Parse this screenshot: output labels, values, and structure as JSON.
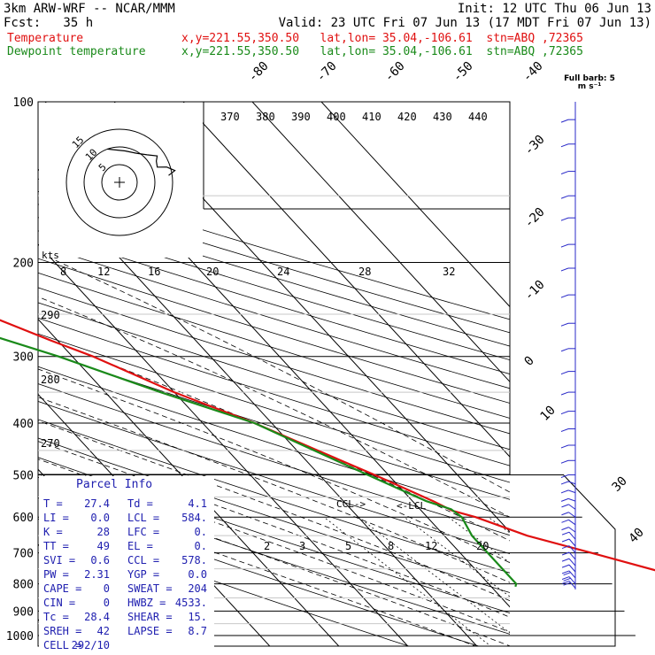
{
  "header": {
    "model": "3km ARW-WRF -- NCAR/MMM",
    "init": "Init: 12 UTC Thu 06 Jun 13",
    "fcst": "Fcst:   35 h",
    "valid": "Valid: 23 UTC Fri 07 Jun 13 (17 MDT Fri 07 Jun 13)",
    "temp_label": "Temperature",
    "temp_info": "x,y=221.55,350.50   lat,lon= 35.04,-106.61  stn=ABQ ,72365",
    "dew_label": "Dewpoint temperature",
    "dew_info": "x,y=221.55,350.50   lat,lon= 35.04,-106.61  stn=ABQ ,72365"
  },
  "colors": {
    "temperature": "#e01010",
    "dewpoint": "#1a8a1a",
    "wind": "#2828c8",
    "grid": "#000000",
    "ink": "#000000"
  },
  "wind_label": "Full barb: 5 m s⁻¹",
  "hodograph": {
    "units": "kts",
    "rings": [
      "5",
      "10",
      "15"
    ]
  },
  "parcel_info": {
    "title": "Parcel Info",
    "rows": [
      {
        "k1": "T",
        "v1": "27.4",
        "k2": "Td",
        "v2": "4.1"
      },
      {
        "k1": "LI",
        "v1": "0.0",
        "k2": "LCL",
        "v2": "584."
      },
      {
        "k1": "K",
        "v1": "28",
        "k2": "LFC",
        "v2": "0."
      },
      {
        "k1": "TT",
        "v1": "49",
        "k2": "EL",
        "v2": "0."
      },
      {
        "k1": "SVI",
        "v1": "0.6",
        "k2": "CCL",
        "v2": "578."
      },
      {
        "k1": "PW",
        "v1": "2.31",
        "k2": "YGP",
        "v2": "0.0"
      },
      {
        "k1": "CAPE",
        "v1": "0",
        "k2": "SWEAT",
        "v2": "204"
      },
      {
        "k1": "CIN",
        "v1": "0",
        "k2": "HWBZ",
        "v2": "4533."
      },
      {
        "k1": "Tc",
        "v1": "28.4",
        "k2": "SHEAR",
        "v2": "15."
      },
      {
        "k1": "SREH",
        "v1": "42",
        "k2": "LAPSE",
        "v2": "8.7"
      },
      {
        "k1": "CELL",
        "v1": "292/10",
        "k2": "",
        "v2": ""
      }
    ]
  },
  "annotations": {
    "ccl": "CCL->",
    "lcl": "<-LCL"
  },
  "chart_data": {
    "type": "line",
    "title": "",
    "chart_kind": "skew-T log-p",
    "y_scale": "log",
    "ylabel": "",
    "xlabel": "",
    "pressure_levels": [
      "100",
      "200",
      "300",
      "400",
      "500",
      "600",
      "700",
      "800",
      "900",
      "1000"
    ],
    "temperature_ticks": [
      "-80",
      "-70",
      "-60",
      "-50",
      "-40",
      "-30",
      "-20",
      "-10",
      "0",
      "10",
      "30",
      "40"
    ],
    "theta_e_labels": [
      "370",
      "380",
      "390",
      "400",
      "410",
      "420",
      "430",
      "440"
    ],
    "theta_labels": [
      "290",
      "280",
      "270"
    ],
    "mixing_ratio_labels_upper": [
      "8",
      "12",
      "16",
      "20",
      "24",
      "28",
      "32"
    ],
    "mixing_ratio_labels_lower": [
      "2",
      "3",
      "5",
      "8",
      "12",
      "20"
    ],
    "series": [
      {
        "key": "temperature",
        "points": [
          [
            810,
            33.5
          ],
          [
            800,
            32
          ],
          [
            780,
            29
          ],
          [
            700,
            19
          ],
          [
            650,
            12
          ],
          [
            600,
            7
          ],
          [
            584,
            4.5
          ],
          [
            560,
            3
          ],
          [
            500,
            -2
          ],
          [
            450,
            -7
          ],
          [
            400,
            -12.5
          ],
          [
            350,
            -20
          ],
          [
            300,
            -27
          ],
          [
            280,
            -31
          ],
          [
            250,
            -37
          ],
          [
            220,
            -45
          ],
          [
            200,
            -51
          ],
          [
            185,
            -55
          ],
          [
            175,
            -57
          ],
          [
            155,
            -57
          ],
          [
            140,
            -56
          ],
          [
            130,
            -55
          ],
          [
            120,
            -56
          ],
          [
            110,
            -57
          ],
          [
            100,
            -60
          ]
        ]
      },
      {
        "key": "dewpoint",
        "points": [
          [
            810,
            3.5
          ],
          [
            800,
            4
          ],
          [
            700,
            4
          ],
          [
            650,
            4
          ],
          [
            600,
            5
          ],
          [
            580,
            4.5
          ],
          [
            560,
            2
          ],
          [
            500,
            -3
          ],
          [
            450,
            -7.5
          ],
          [
            400,
            -12.5
          ],
          [
            350,
            -22
          ],
          [
            300,
            -32
          ],
          [
            270,
            -40
          ],
          [
            250,
            -45
          ],
          [
            220,
            -53
          ],
          [
            200,
            -58
          ],
          [
            180,
            -63
          ],
          [
            150,
            -70
          ],
          [
            130,
            -75
          ],
          [
            115,
            -80
          ],
          [
            100,
            -85
          ]
        ]
      }
    ],
    "wind_barbs": [
      {
        "p": 815,
        "spd": 10,
        "dir": 240
      },
      {
        "p": 800,
        "spd": 10,
        "dir": 240
      },
      {
        "p": 780,
        "spd": 10,
        "dir": 240
      },
      {
        "p": 760,
        "spd": 8,
        "dir": 240
      },
      {
        "p": 740,
        "spd": 6,
        "dir": 240
      },
      {
        "p": 720,
        "spd": 6,
        "dir": 240
      },
      {
        "p": 700,
        "spd": 5,
        "dir": 240
      },
      {
        "p": 680,
        "spd": 5,
        "dir": 240
      },
      {
        "p": 660,
        "spd": 5,
        "dir": 240
      },
      {
        "p": 640,
        "spd": 5,
        "dir": 250
      },
      {
        "p": 620,
        "spd": 5,
        "dir": 250
      },
      {
        "p": 600,
        "spd": 5,
        "dir": 250
      },
      {
        "p": 580,
        "spd": 5,
        "dir": 250
      },
      {
        "p": 560,
        "spd": 5,
        "dir": 260
      },
      {
        "p": 540,
        "spd": 5,
        "dir": 260
      },
      {
        "p": 520,
        "spd": 5,
        "dir": 260
      },
      {
        "p": 500,
        "spd": 5,
        "dir": 270
      },
      {
        "p": 470,
        "spd": 5,
        "dir": 270
      },
      {
        "p": 440,
        "spd": 5,
        "dir": 270
      },
      {
        "p": 410,
        "spd": 5,
        "dir": 270
      },
      {
        "p": 380,
        "spd": 5,
        "dir": 270
      },
      {
        "p": 350,
        "spd": 5,
        "dir": 270
      },
      {
        "p": 320,
        "spd": 5,
        "dir": 270
      },
      {
        "p": 290,
        "spd": 5,
        "dir": 270
      },
      {
        "p": 260,
        "spd": 5,
        "dir": 270
      },
      {
        "p": 230,
        "spd": 5,
        "dir": 270
      },
      {
        "p": 205,
        "spd": 5,
        "dir": 270
      },
      {
        "p": 185,
        "spd": 5,
        "dir": 270
      },
      {
        "p": 165,
        "spd": 5,
        "dir": 270
      },
      {
        "p": 150,
        "spd": 5,
        "dir": 270
      },
      {
        "p": 135,
        "spd": 5,
        "dir": 270
      },
      {
        "p": 120,
        "spd": 5,
        "dir": 270
      },
      {
        "p": 108,
        "spd": 5,
        "dir": 270
      }
    ],
    "hodograph_points": [
      [
        160,
        10
      ],
      [
        190,
        9
      ],
      [
        210,
        9.5
      ],
      [
        225,
        11
      ],
      [
        235,
        13
      ],
      [
        240,
        12
      ],
      [
        248,
        11.5
      ],
      [
        252,
        14
      ],
      [
        258,
        16
      ],
      [
        262,
        14
      ]
    ]
  }
}
